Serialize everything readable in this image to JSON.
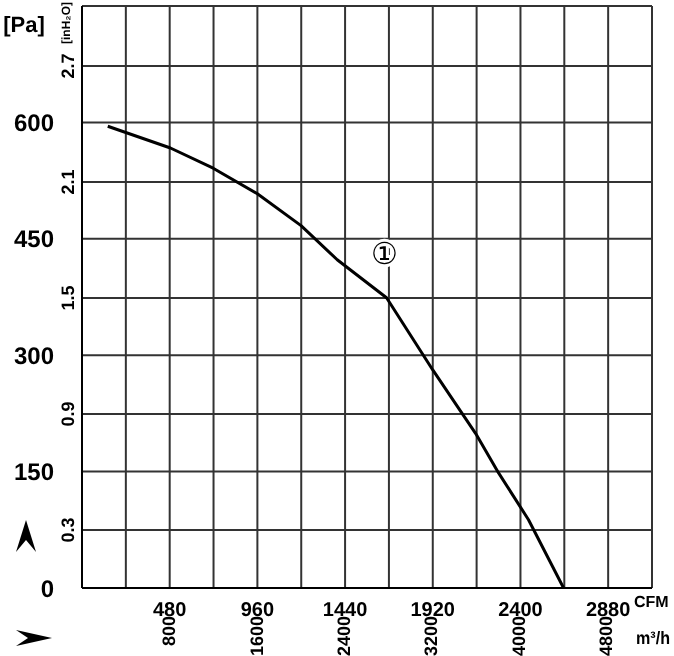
{
  "chart_data": {
    "type": "line",
    "ylabel": "[Pa]",
    "y2label": "[inH₂O]",
    "xlabel": "CFM",
    "x2label": "m³/h",
    "series": [
      {
        "color": "#000000",
        "x": [
          141,
          484,
          718,
          960,
          1199,
          1397,
          1667,
          1920,
          2155,
          2281,
          2444,
          2636
        ],
        "values": [
          595,
          567,
          541,
          508,
          467,
          423,
          374,
          281,
          199,
          148,
          88,
          0
        ]
      }
    ],
    "annotations": [
      "①"
    ],
    "xlim": [
      0,
      3120
    ],
    "xticks": [
      {
        "value": 240,
        "label": null
      },
      480,
      {
        "value": 720,
        "label": null
      },
      960,
      {
        "value": 1200,
        "label": null
      },
      1440,
      {
        "value": 1680,
        "label": null
      },
      1920,
      {
        "value": 2160,
        "label": null
      },
      2400,
      {
        "value": 2640,
        "label": null
      },
      2880
    ],
    "x2lim": [
      0,
      5220
    ],
    "x2ticks": [
      800,
      1600,
      2400,
      3200,
      4000,
      4800
    ],
    "ylim": [
      0,
      750
    ],
    "yticks": [
      0,
      150,
      300,
      450,
      600
    ],
    "y2lim": [
      0,
      3.01
    ],
    "y2ticks": [
      0.3,
      0.9,
      1.5,
      2.1,
      2.7
    ],
    "grid": true,
    "marker": "none",
    "line_style": "solid"
  }
}
